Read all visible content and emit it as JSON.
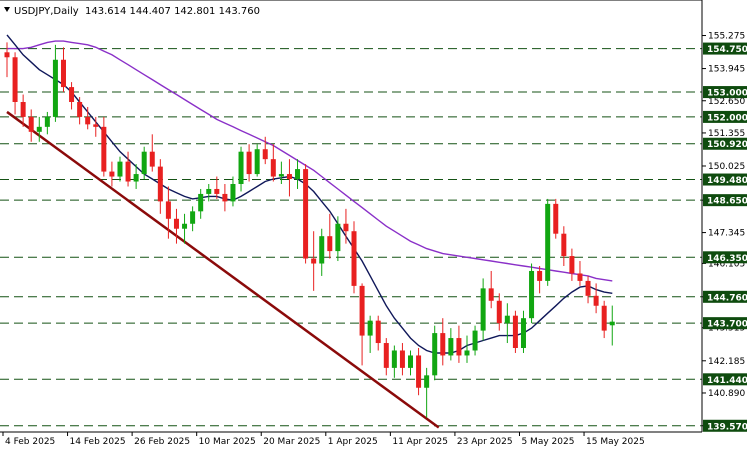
{
  "header": {
    "symbol": "USDJPY,Daily",
    "ohlc": "143.614 144.407 142.801 143.760"
  },
  "colors": {
    "bull": "#11a611",
    "bear": "#e82020",
    "ma_fast": "#10185a",
    "ma_slow": "#8a30c8",
    "trendline": "#8b0a0a",
    "level_line": "#145214",
    "level_label_bg": "#0e4b0e"
  },
  "chart_data": {
    "type": "candlestick",
    "symbol": "USDJPY",
    "timeframe": "Daily",
    "ylim": [
      139.4,
      155.9
    ],
    "grid": false,
    "price_ticks": [
      "155.275",
      "153.945",
      "152.650",
      "151.355",
      "150.025",
      "148.650",
      "147.345",
      "146.105",
      "144.760",
      "143.515",
      "142.185",
      "140.890",
      "139.570"
    ],
    "level_lines": [
      {
        "value": 154.75,
        "label": "154.750"
      },
      {
        "value": 153.0,
        "label": "153.000"
      },
      {
        "value": 152.0,
        "label": "152.000"
      },
      {
        "value": 150.92,
        "label": "150.920"
      },
      {
        "value": 149.48,
        "label": "149.480"
      },
      {
        "value": 148.65,
        "label": "148.650"
      },
      {
        "value": 146.35,
        "label": "146.350"
      },
      {
        "value": 144.76,
        "label": "144.760"
      },
      {
        "value": 143.7,
        "label": "143.700"
      },
      {
        "value": 141.44,
        "label": "141.440"
      },
      {
        "value": 139.57,
        "label": "139.570"
      }
    ],
    "date_labels": [
      {
        "index": 0,
        "label": "4 Feb 2025"
      },
      {
        "index": 8,
        "label": "14 Feb 2025"
      },
      {
        "index": 16,
        "label": "26 Feb 2025"
      },
      {
        "index": 24,
        "label": "10 Mar 2025"
      },
      {
        "index": 32,
        "label": "20 Mar 2025"
      },
      {
        "index": 40,
        "label": "1 Apr 2025"
      },
      {
        "index": 48,
        "label": "11 Apr 2025"
      },
      {
        "index": 56,
        "label": "23 Apr 2025"
      },
      {
        "index": 64,
        "label": "5 May 2025"
      },
      {
        "index": 72,
        "label": "15 May 2025"
      }
    ],
    "candles": [
      {
        "o": 154.6,
        "h": 155.0,
        "l": 153.6,
        "c": 154.4
      },
      {
        "o": 154.4,
        "h": 154.6,
        "l": 152.1,
        "c": 152.6
      },
      {
        "o": 152.6,
        "h": 152.9,
        "l": 151.6,
        "c": 152.0
      },
      {
        "o": 152.0,
        "h": 152.3,
        "l": 151.0,
        "c": 151.4
      },
      {
        "o": 151.4,
        "h": 152.0,
        "l": 151.0,
        "c": 151.6
      },
      {
        "o": 151.6,
        "h": 152.2,
        "l": 151.3,
        "c": 152.0
      },
      {
        "o": 152.0,
        "h": 154.9,
        "l": 151.8,
        "c": 154.3
      },
      {
        "o": 154.3,
        "h": 154.8,
        "l": 153.0,
        "c": 153.2
      },
      {
        "o": 153.2,
        "h": 153.4,
        "l": 152.3,
        "c": 152.6
      },
      {
        "o": 152.6,
        "h": 152.8,
        "l": 151.7,
        "c": 152.0
      },
      {
        "o": 152.0,
        "h": 152.4,
        "l": 151.5,
        "c": 151.7
      },
      {
        "o": 151.7,
        "h": 152.0,
        "l": 151.2,
        "c": 151.6
      },
      {
        "o": 151.6,
        "h": 152.0,
        "l": 149.6,
        "c": 149.8
      },
      {
        "o": 149.8,
        "h": 150.2,
        "l": 149.2,
        "c": 149.6
      },
      {
        "o": 149.6,
        "h": 150.4,
        "l": 149.4,
        "c": 150.2
      },
      {
        "o": 150.2,
        "h": 150.6,
        "l": 149.2,
        "c": 149.4
      },
      {
        "o": 149.4,
        "h": 150.1,
        "l": 149.1,
        "c": 149.7
      },
      {
        "o": 149.7,
        "h": 150.8,
        "l": 149.5,
        "c": 150.6
      },
      {
        "o": 150.6,
        "h": 151.3,
        "l": 149.8,
        "c": 150.0
      },
      {
        "o": 150.0,
        "h": 150.3,
        "l": 148.1,
        "c": 148.6
      },
      {
        "o": 148.6,
        "h": 149.2,
        "l": 147.1,
        "c": 147.9
      },
      {
        "o": 147.9,
        "h": 148.3,
        "l": 146.9,
        "c": 147.5
      },
      {
        "o": 147.5,
        "h": 148.1,
        "l": 146.9,
        "c": 147.7
      },
      {
        "o": 147.7,
        "h": 148.4,
        "l": 147.4,
        "c": 148.2
      },
      {
        "o": 148.2,
        "h": 149.1,
        "l": 147.9,
        "c": 148.9
      },
      {
        "o": 148.9,
        "h": 149.3,
        "l": 148.6,
        "c": 149.1
      },
      {
        "o": 149.1,
        "h": 149.6,
        "l": 148.7,
        "c": 148.9
      },
      {
        "o": 148.9,
        "h": 149.3,
        "l": 148.2,
        "c": 148.6
      },
      {
        "o": 148.6,
        "h": 149.6,
        "l": 148.4,
        "c": 149.3
      },
      {
        "o": 149.3,
        "h": 150.8,
        "l": 149.0,
        "c": 150.6
      },
      {
        "o": 150.6,
        "h": 150.9,
        "l": 149.4,
        "c": 149.7
      },
      {
        "o": 149.7,
        "h": 150.9,
        "l": 149.6,
        "c": 150.7
      },
      {
        "o": 150.7,
        "h": 151.2,
        "l": 150.1,
        "c": 150.3
      },
      {
        "o": 150.3,
        "h": 150.9,
        "l": 149.4,
        "c": 149.6
      },
      {
        "o": 149.6,
        "h": 150.2,
        "l": 149.3,
        "c": 149.7
      },
      {
        "o": 149.7,
        "h": 150.3,
        "l": 148.8,
        "c": 149.5
      },
      {
        "o": 149.5,
        "h": 150.3,
        "l": 149.1,
        "c": 149.9
      },
      {
        "o": 149.9,
        "h": 150.1,
        "l": 146.1,
        "c": 146.3
      },
      {
        "o": 146.3,
        "h": 147.4,
        "l": 145.0,
        "c": 146.1
      },
      {
        "o": 146.1,
        "h": 147.5,
        "l": 145.6,
        "c": 147.2
      },
      {
        "o": 147.2,
        "h": 148.1,
        "l": 146.3,
        "c": 146.6
      },
      {
        "o": 146.6,
        "h": 148.0,
        "l": 146.2,
        "c": 147.7
      },
      {
        "o": 147.7,
        "h": 148.3,
        "l": 146.9,
        "c": 147.4
      },
      {
        "o": 147.4,
        "h": 147.8,
        "l": 144.9,
        "c": 145.2
      },
      {
        "o": 145.2,
        "h": 145.3,
        "l": 142.0,
        "c": 143.2
      },
      {
        "o": 143.2,
        "h": 144.0,
        "l": 142.5,
        "c": 143.8
      },
      {
        "o": 143.8,
        "h": 144.0,
        "l": 142.6,
        "c": 142.9
      },
      {
        "o": 142.9,
        "h": 143.1,
        "l": 141.6,
        "c": 141.9
      },
      {
        "o": 141.9,
        "h": 142.8,
        "l": 141.5,
        "c": 142.6
      },
      {
        "o": 142.6,
        "h": 142.9,
        "l": 141.6,
        "c": 141.9
      },
      {
        "o": 141.9,
        "h": 142.6,
        "l": 141.6,
        "c": 142.4
      },
      {
        "o": 142.4,
        "h": 142.7,
        "l": 140.8,
        "c": 141.1
      },
      {
        "o": 141.1,
        "h": 141.9,
        "l": 139.9,
        "c": 141.6
      },
      {
        "o": 141.6,
        "h": 143.6,
        "l": 141.4,
        "c": 143.3
      },
      {
        "o": 143.3,
        "h": 143.9,
        "l": 142.0,
        "c": 142.4
      },
      {
        "o": 142.4,
        "h": 143.5,
        "l": 142.2,
        "c": 143.1
      },
      {
        "o": 143.1,
        "h": 143.6,
        "l": 142.1,
        "c": 142.4
      },
      {
        "o": 142.4,
        "h": 143.2,
        "l": 142.1,
        "c": 142.6
      },
      {
        "o": 142.6,
        "h": 143.6,
        "l": 142.4,
        "c": 143.4
      },
      {
        "o": 143.4,
        "h": 145.5,
        "l": 143.0,
        "c": 145.1
      },
      {
        "o": 145.1,
        "h": 145.8,
        "l": 144.3,
        "c": 144.6
      },
      {
        "o": 144.6,
        "h": 144.9,
        "l": 143.4,
        "c": 143.7
      },
      {
        "o": 143.7,
        "h": 144.5,
        "l": 142.9,
        "c": 144.0
      },
      {
        "o": 144.0,
        "h": 144.2,
        "l": 142.5,
        "c": 142.7
      },
      {
        "o": 142.7,
        "h": 144.2,
        "l": 142.5,
        "c": 143.9
      },
      {
        "o": 143.9,
        "h": 146.1,
        "l": 143.7,
        "c": 145.8
      },
      {
        "o": 145.8,
        "h": 146.0,
        "l": 144.9,
        "c": 145.4
      },
      {
        "o": 145.4,
        "h": 148.7,
        "l": 145.2,
        "c": 148.5
      },
      {
        "o": 148.5,
        "h": 148.7,
        "l": 147.1,
        "c": 147.3
      },
      {
        "o": 147.3,
        "h": 147.6,
        "l": 146.0,
        "c": 146.4
      },
      {
        "o": 146.4,
        "h": 146.7,
        "l": 145.4,
        "c": 145.7
      },
      {
        "o": 145.7,
        "h": 146.2,
        "l": 145.2,
        "c": 145.4
      },
      {
        "o": 145.4,
        "h": 145.6,
        "l": 144.5,
        "c": 144.8
      },
      {
        "o": 144.8,
        "h": 145.3,
        "l": 144.1,
        "c": 144.4
      },
      {
        "o": 144.4,
        "h": 144.6,
        "l": 143.1,
        "c": 143.4
      },
      {
        "o": 143.614,
        "h": 144.407,
        "l": 142.801,
        "c": 143.76
      }
    ],
    "ma_fast": [
      155.3,
      154.9,
      154.5,
      154.2,
      153.9,
      153.7,
      153.5,
      153.3,
      153.0,
      152.6,
      152.2,
      151.8,
      151.4,
      151.0,
      150.6,
      150.3,
      150.0,
      149.7,
      149.5,
      149.3,
      149.1,
      148.95,
      148.8,
      148.7,
      148.75,
      148.8,
      148.8,
      148.7,
      148.65,
      148.8,
      149.0,
      149.2,
      149.4,
      149.5,
      149.55,
      149.6,
      149.5,
      149.3,
      149.0,
      148.6,
      148.2,
      147.7,
      147.2,
      146.7,
      146.2,
      145.6,
      145.0,
      144.4,
      143.9,
      143.5,
      143.1,
      142.8,
      142.6,
      142.5,
      142.5,
      142.5,
      142.6,
      142.8,
      142.9,
      143.0,
      143.1,
      143.2,
      143.2,
      143.2,
      143.3,
      143.5,
      143.8,
      144.1,
      144.4,
      144.7,
      144.95,
      145.15,
      145.2,
      145.05,
      144.95,
      144.9
    ],
    "ma_slow": [
      154.75,
      154.75,
      154.75,
      154.8,
      154.9,
      155.0,
      155.05,
      155.05,
      155.0,
      154.95,
      154.9,
      154.8,
      154.65,
      154.5,
      154.3,
      154.1,
      153.9,
      153.7,
      153.5,
      153.3,
      153.1,
      152.9,
      152.7,
      152.5,
      152.3,
      152.1,
      151.9,
      151.75,
      151.6,
      151.45,
      151.3,
      151.15,
      151.0,
      150.85,
      150.65,
      150.45,
      150.25,
      150.05,
      149.85,
      149.6,
      149.35,
      149.1,
      148.85,
      148.6,
      148.35,
      148.1,
      147.85,
      147.6,
      147.4,
      147.2,
      147.0,
      146.85,
      146.7,
      146.6,
      146.5,
      146.45,
      146.4,
      146.35,
      146.3,
      146.25,
      146.2,
      146.15,
      146.1,
      146.05,
      146.0,
      145.95,
      145.9,
      145.85,
      145.8,
      145.75,
      145.7,
      145.65,
      145.6,
      145.5,
      145.45,
      145.4
    ],
    "trendline": {
      "from": {
        "index": 0,
        "price": 152.2
      },
      "to": {
        "index": 53.5,
        "price": 139.5
      }
    }
  }
}
